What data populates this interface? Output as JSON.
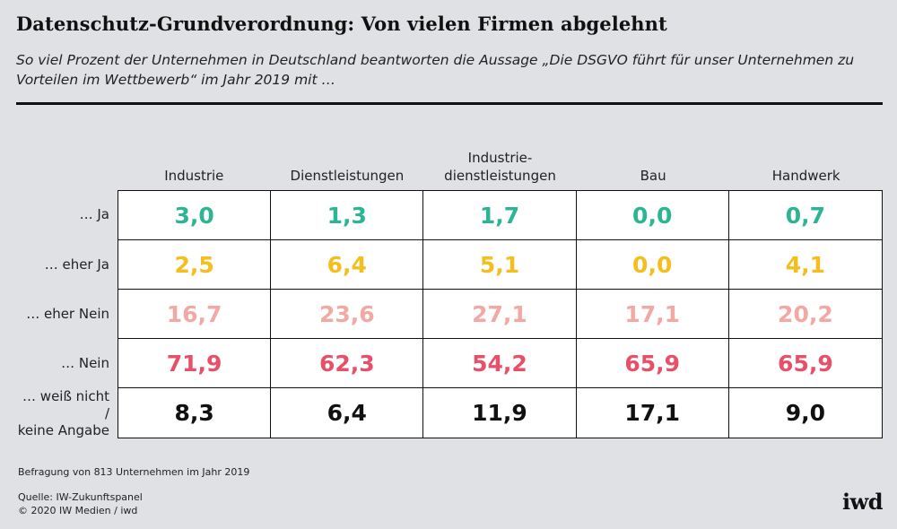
{
  "title": "Datenschutz-Grundverordnung: Von vielen Firmen abgelehnt",
  "subtitle": "So viel Prozent der Unternehmen in Deutschland beantworten die Aussage „Die DSGVO führt für unser Unternehmen zu Vorteilen im Wettbewerb“ im Jahr 2019 mit …",
  "chart_data": {
    "type": "table",
    "columns": [
      "Industrie",
      "Dienstleistungen",
      "Industrie-\ndienstleistungen",
      "Bau",
      "Handwerk"
    ],
    "rows": [
      {
        "label": "… Ja",
        "color": "#2bb594",
        "values": [
          "3,0",
          "1,3",
          "1,7",
          "0,0",
          "0,7"
        ]
      },
      {
        "label": "… eher Ja",
        "color": "#f3be1e",
        "values": [
          "2,5",
          "6,4",
          "5,1",
          "0,0",
          "4,1"
        ]
      },
      {
        "label": "… eher Nein",
        "color": "#f2a8a3",
        "values": [
          "16,7",
          "23,6",
          "27,1",
          "17,1",
          "20,2"
        ]
      },
      {
        "label": "… Nein",
        "color": "#e84f68",
        "values": [
          "71,9",
          "62,3",
          "54,2",
          "65,9",
          "65,9"
        ]
      },
      {
        "label": "… weiß nicht /\nkeine Angabe",
        "color": "#111111",
        "values": [
          "8,3",
          "6,4",
          "11,9",
          "17,1",
          "9,0"
        ]
      }
    ]
  },
  "note": "Befragung von 813 Unternehmen im Jahr 2019",
  "source": "Quelle: IW-Zukunftspanel",
  "copyright": "© 2020 IW Medien / iwd",
  "logo": "iwd"
}
